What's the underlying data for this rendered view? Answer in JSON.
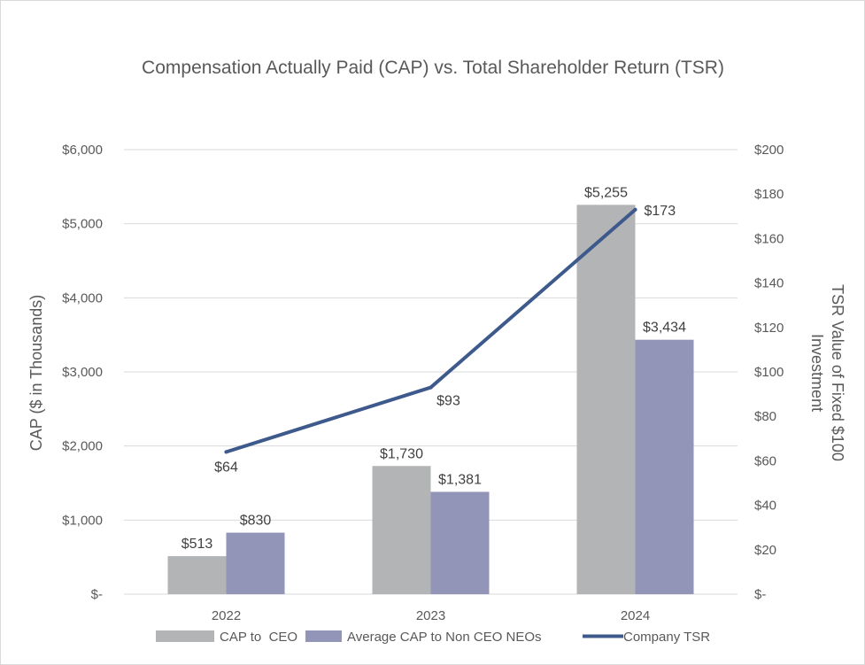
{
  "chart_data": {
    "type": "bar",
    "title": "Compensation Actually Paid (CAP) vs. Total Shareholder Return (TSR)",
    "categories": [
      "2022",
      "2023",
      "2024"
    ],
    "ylabel": "CAP ($ in Thousands)",
    "y2label_lines": [
      "TSR Value of Fixed $100",
      "Investment"
    ],
    "ylim": [
      0,
      6000
    ],
    "y2lim": [
      0,
      200
    ],
    "yticks": [
      {
        "value": 0,
        "label": "$-"
      },
      {
        "value": 1000,
        "label": "$1,000"
      },
      {
        "value": 2000,
        "label": "$2,000"
      },
      {
        "value": 3000,
        "label": "$3,000"
      },
      {
        "value": 4000,
        "label": "$4,000"
      },
      {
        "value": 5000,
        "label": "$5,000"
      },
      {
        "value": 6000,
        "label": "$6,000"
      }
    ],
    "y2ticks": [
      {
        "value": 0,
        "label": "$-"
      },
      {
        "value": 20,
        "label": "$20"
      },
      {
        "value": 40,
        "label": "$40"
      },
      {
        "value": 60,
        "label": "$60"
      },
      {
        "value": 80,
        "label": "$80"
      },
      {
        "value": 100,
        "label": "$100"
      },
      {
        "value": 120,
        "label": "$120"
      },
      {
        "value": 140,
        "label": "$140"
      },
      {
        "value": 160,
        "label": "$160"
      },
      {
        "value": 180,
        "label": "$180"
      },
      {
        "value": 200,
        "label": "$200"
      }
    ],
    "grid": true,
    "legend_position": "bottom",
    "series": [
      {
        "name": "CAP to  CEO",
        "kind": "bar",
        "axis": "left",
        "color": "#b3b4b6",
        "values": [
          513,
          1730,
          5255
        ],
        "labels": [
          "$513",
          "$1,730",
          "$5,255"
        ]
      },
      {
        "name": "Average CAP to Non CEO NEOs",
        "kind": "bar",
        "axis": "left",
        "color": "#9295b8",
        "values": [
          830,
          1381,
          3434
        ],
        "labels": [
          "$830",
          "$1,381",
          "$3,434"
        ]
      },
      {
        "name": "Company TSR",
        "kind": "line",
        "axis": "right",
        "color": "#3e5a8c",
        "values": [
          64,
          93,
          173
        ],
        "labels": [
          "$64",
          "$93",
          "$173"
        ]
      }
    ]
  }
}
